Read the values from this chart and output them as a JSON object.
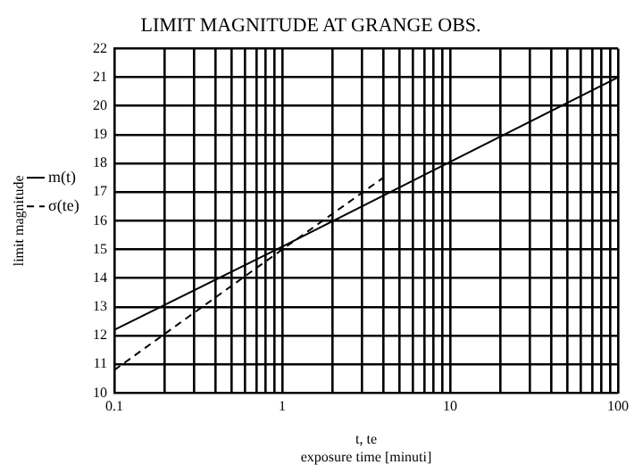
{
  "chart_data": {
    "type": "line",
    "title": "LIMIT MAGNITUDE AT GRANGE OBS.",
    "xlabel": "t, te\nexposure time [minuti]",
    "ylabel": "limit magnitude",
    "log": "x",
    "grid": true,
    "legend": "left",
    "marker": "none",
    "xlim": [
      0.1,
      100
    ],
    "ylim": [
      10,
      22
    ],
    "xticks": [
      {
        "value": 0.1,
        "label": "0.1"
      },
      {
        "value": 0.2,
        "label": null
      },
      {
        "value": 0.3,
        "label": null
      },
      {
        "value": 0.4,
        "label": null
      },
      {
        "value": 0.5,
        "label": null
      },
      {
        "value": 0.6,
        "label": null
      },
      {
        "value": 0.7,
        "label": null
      },
      {
        "value": 0.8,
        "label": null
      },
      {
        "value": 0.9,
        "label": null
      },
      1,
      {
        "value": 2,
        "label": null
      },
      {
        "value": 3,
        "label": null
      },
      {
        "value": 4,
        "label": null
      },
      {
        "value": 5,
        "label": null
      },
      {
        "value": 6,
        "label": null
      },
      {
        "value": 7,
        "label": null
      },
      {
        "value": 8,
        "label": null
      },
      {
        "value": 9,
        "label": null
      },
      10,
      {
        "value": 20,
        "label": null
      },
      {
        "value": 30,
        "label": null
      },
      {
        "value": 40,
        "label": null
      },
      {
        "value": 50,
        "label": null
      },
      {
        "value": 60,
        "label": null
      },
      {
        "value": 70,
        "label": null
      },
      {
        "value": 80,
        "label": null
      },
      {
        "value": 90,
        "label": null
      },
      100
    ],
    "yticks": [
      10,
      11,
      12,
      13,
      14,
      15,
      16,
      17,
      18,
      19,
      20,
      21,
      22
    ],
    "series": [
      {
        "name": "m(t)",
        "color": "#000000",
        "line_style": "solid",
        "x": [
          0.1,
          1,
          10,
          100
        ],
        "values": [
          12.2,
          15.1,
          18.05,
          21
        ]
      },
      {
        "name": "σ(te)",
        "color": "#000000",
        "line_style": "dashed",
        "x": [
          0.1,
          1,
          4
        ],
        "values": [
          10.8,
          15,
          17.5
        ]
      }
    ]
  }
}
